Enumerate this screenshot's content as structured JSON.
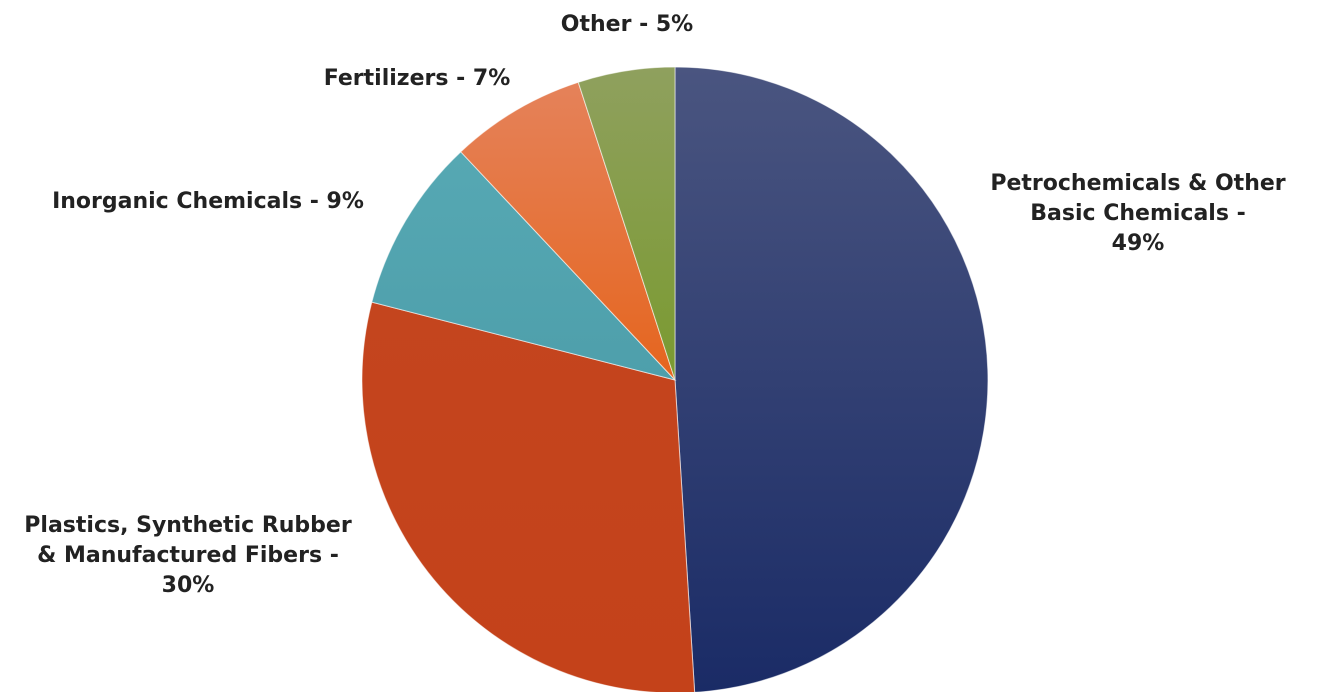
{
  "chart_data": {
    "type": "pie",
    "title": "",
    "start": "12 o'clock",
    "direction": "clockwise",
    "slices": [
      {
        "label_lines": [
          "Petrochemicals & Other",
          "Basic Chemicals -",
          "49%"
        ],
        "category": "Petrochemicals & Other Basic Chemicals",
        "value": 49,
        "color": "#243568",
        "gradient": [
          "#4a5580",
          "#1a2b66"
        ]
      },
      {
        "label_lines": [
          "Plastics, Synthetic Rubber",
          "& Manufactured Fibers -",
          "30%"
        ],
        "category": "Plastics, Synthetic Rubber & Manufactured Fibers",
        "value": 30,
        "color": "#c43e1a",
        "gradient": [
          "#c4451e",
          "#c4421a"
        ]
      },
      {
        "label_lines": [
          "Inorganic Chemicals - 9%"
        ],
        "category": "Inorganic Chemicals",
        "value": 9,
        "color": "#52a5b0",
        "gradient": [
          "#56a8b3",
          "#4e9fab"
        ]
      },
      {
        "label_lines": [
          "Fertilizers - 7%"
        ],
        "category": "Fertilizers",
        "value": 7,
        "color": "#e56e2e",
        "gradient": [
          "#e5825a",
          "#e5651e"
        ]
      },
      {
        "label_lines": [
          "Other - 5%"
        ],
        "category": "Other",
        "value": 5,
        "color": "#82a040",
        "gradient": [
          "#8fa05e",
          "#7a9a30"
        ]
      }
    ]
  }
}
